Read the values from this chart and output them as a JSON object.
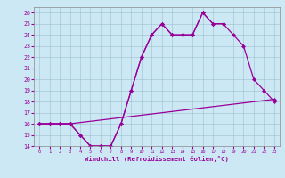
{
  "bg_color": "#cce8f4",
  "line_color": "#990099",
  "xlim": [
    -0.5,
    23.5
  ],
  "ylim": [
    14,
    26.5
  ],
  "xticks": [
    0,
    1,
    2,
    3,
    4,
    5,
    6,
    7,
    8,
    9,
    10,
    11,
    12,
    13,
    14,
    15,
    16,
    17,
    18,
    19,
    20,
    21,
    22,
    23
  ],
  "yticks": [
    14,
    15,
    16,
    17,
    18,
    19,
    20,
    21,
    22,
    23,
    24,
    25,
    26
  ],
  "xlabel": "Windchill (Refroidissement éolien,°C)",
  "series1_x": [
    0,
    1,
    2,
    3,
    4,
    5,
    6,
    7,
    8,
    9,
    10,
    11,
    12,
    13,
    14,
    15,
    16,
    17,
    18
  ],
  "series1_y": [
    16,
    16,
    16,
    16,
    15,
    14,
    14,
    14,
    16,
    19,
    22,
    24,
    25,
    24,
    24,
    24,
    26,
    25,
    25
  ],
  "series2_x": [
    0,
    1,
    2,
    3,
    4,
    5,
    6,
    7,
    8,
    9,
    10,
    11,
    12,
    13,
    14,
    15,
    16,
    17,
    18,
    19,
    20,
    21,
    22,
    23
  ],
  "series2_y": [
    16,
    16,
    16,
    16,
    15,
    14,
    14,
    14,
    16,
    19,
    22,
    24,
    25,
    24,
    24,
    24,
    26,
    25,
    25,
    24,
    23,
    20,
    19,
    18
  ],
  "series3_x": [
    0,
    1,
    2,
    3,
    23
  ],
  "series3_y": [
    16,
    16,
    16,
    16,
    18.2
  ],
  "marker_size": 2.5,
  "line_width": 0.9
}
